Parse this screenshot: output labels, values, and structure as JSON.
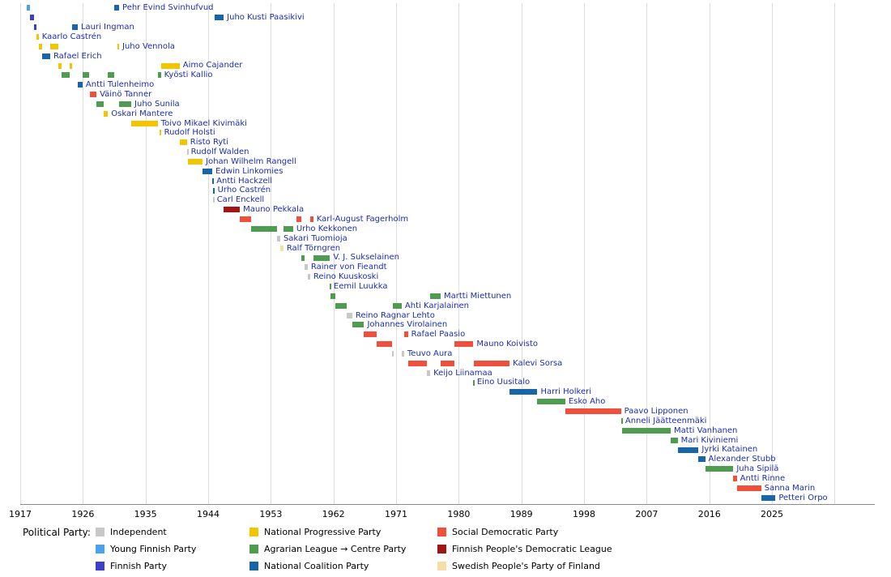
{
  "colors": {
    "label_color": "#1C2DB0",
    "gridline": "#DCDCDC",
    "axis_line": "#8A8A8A"
  },
  "party_colors": {
    "independent": "#C8C8C8",
    "young_finnish": "#49A2EE",
    "finnish_party": "#3B3FCC",
    "progressive": "#F2C500",
    "agrarian_centre": "#4F9B50",
    "national_coalition": "#1767A8",
    "sdp": "#EF4F3B",
    "fpdl": "#A31414",
    "swedish_peoples": "#F5DFA6"
  },
  "axis": {
    "tick_years": [
      1917,
      1926,
      1935,
      1944,
      1953,
      1962,
      1971,
      1980,
      1989,
      1998,
      2007,
      2016,
      2025
    ]
  },
  "legend": {
    "title": "Political Party:",
    "columns": [
      [
        {
          "label": "Independent",
          "party": "independent"
        },
        {
          "label": "Young Finnish Party",
          "party": "young_finnish"
        },
        {
          "label": "Finnish Party",
          "party": "finnish_party"
        }
      ],
      [
        {
          "label": "National Progressive Party",
          "party": "progressive"
        },
        {
          "label": "Agrarian League → Centre Party",
          "party": "agrarian_centre"
        },
        {
          "label": "National Coalition Party",
          "party": "national_coalition"
        }
      ],
      [
        {
          "label": "Social Democratic Party",
          "party": "sdp"
        },
        {
          "label": "Finnish People's Democratic League",
          "party": "fpdl"
        },
        {
          "label": "Swedish People's Party of Finland",
          "party": "swedish_peoples"
        }
      ]
    ]
  },
  "chart_data": {
    "type": "timeline",
    "x_min": 1917,
    "x_max": 2034,
    "x_ticks": [
      1917,
      1926,
      1935,
      1944,
      1953,
      1962,
      1971,
      1980,
      1989,
      1998,
      2007,
      2016,
      2025
    ],
    "grid": true,
    "legend_position": "bottom",
    "people": [
      {
        "name": "Pehr Evind Svinhufvud",
        "terms": [
          [
            1917.9,
            1918.45,
            "young_finnish"
          ],
          [
            1930.5,
            1931.2,
            "national_coalition"
          ]
        ]
      },
      {
        "name": "Juho Kusti Paasikivi",
        "terms": [
          [
            1918.45,
            1918.95,
            "finnish_party"
          ],
          [
            1944.88,
            1946.23,
            "national_coalition"
          ]
        ]
      },
      {
        "name": "Lauri Ingman",
        "terms": [
          [
            1918.95,
            1919.3,
            "finnish_party"
          ],
          [
            1924.4,
            1925.25,
            "national_coalition"
          ]
        ]
      },
      {
        "name": "Kaarlo Castrén",
        "terms": [
          [
            1919.3,
            1919.65,
            "progressive"
          ]
        ]
      },
      {
        "name": "Juho Vennola",
        "terms": [
          [
            1919.65,
            1920.2,
            "progressive"
          ],
          [
            1921.3,
            1922.45,
            "progressive"
          ],
          [
            1930.95,
            1931.2,
            "progressive"
          ]
        ]
      },
      {
        "name": "Rafael Erich",
        "terms": [
          [
            1920.2,
            1921.3,
            "national_coalition"
          ]
        ]
      },
      {
        "name": "Aimo Cajander",
        "terms": [
          [
            1922.45,
            1922.9,
            "progressive"
          ],
          [
            1924.05,
            1924.4,
            "progressive"
          ],
          [
            1937.2,
            1939.9,
            "progressive"
          ]
        ]
      },
      {
        "name": "Kyösti Kallio",
        "terms": [
          [
            1922.9,
            1924.05,
            "agrarian_centre"
          ],
          [
            1925.95,
            1926.95,
            "agrarian_centre"
          ],
          [
            1929.6,
            1930.5,
            "agrarian_centre"
          ],
          [
            1936.75,
            1937.2,
            "agrarian_centre"
          ]
        ]
      },
      {
        "name": "Antti Tulenheimo",
        "terms": [
          [
            1925.25,
            1925.95,
            "national_coalition"
          ]
        ]
      },
      {
        "name": "Väinö Tanner",
        "terms": [
          [
            1926.95,
            1927.95,
            "sdp"
          ]
        ]
      },
      {
        "name": "Juho Sunila",
        "terms": [
          [
            1927.95,
            1928.95,
            "agrarian_centre"
          ],
          [
            1931.2,
            1932.95,
            "agrarian_centre"
          ]
        ]
      },
      {
        "name": "Oskari Mantere",
        "terms": [
          [
            1928.95,
            1929.6,
            "progressive"
          ]
        ]
      },
      {
        "name": "Toivo Mikael Kivimäki",
        "terms": [
          [
            1932.95,
            1936.75,
            "progressive"
          ]
        ]
      },
      {
        "name": "Rudolf Holsti",
        "terms": [
          [
            1937.0,
            1937.2,
            "progressive"
          ]
        ]
      },
      {
        "name": "Risto Ryti",
        "terms": [
          [
            1939.9,
            1940.95,
            "progressive"
          ]
        ]
      },
      {
        "name": "Rudolf Walden",
        "terms": [
          [
            1940.95,
            1941.05,
            "independent"
          ]
        ]
      },
      {
        "name": "Johan Wilhelm Rangell",
        "terms": [
          [
            1941.05,
            1943.2,
            "progressive"
          ]
        ]
      },
      {
        "name": "Edwin Linkomies",
        "terms": [
          [
            1943.2,
            1944.6,
            "national_coalition"
          ]
        ]
      },
      {
        "name": "Antti Hackzell",
        "terms": [
          [
            1944.6,
            1944.72,
            "national_coalition"
          ]
        ]
      },
      {
        "name": "Urho Castrén",
        "terms": [
          [
            1944.72,
            1944.88,
            "national_coalition"
          ]
        ]
      },
      {
        "name": "Carl Enckell",
        "terms": [
          [
            1944.7,
            1944.78,
            "independent"
          ]
        ]
      },
      {
        "name": "Mauno Pekkala",
        "terms": [
          [
            1946.23,
            1948.55,
            "fpdl"
          ]
        ]
      },
      {
        "name": "Karl-August Fagerholm",
        "terms": [
          [
            1948.55,
            1950.2,
            "sdp"
          ],
          [
            1956.7,
            1957.4,
            "sdp"
          ],
          [
            1958.65,
            1959.1,
            "sdp"
          ]
        ]
      },
      {
        "name": "Urho Kekkonen",
        "terms": [
          [
            1950.2,
            1953.9,
            "agrarian_centre"
          ],
          [
            1954.8,
            1956.2,
            "agrarian_centre"
          ]
        ]
      },
      {
        "name": "Sakari Tuomioja",
        "terms": [
          [
            1953.9,
            1954.35,
            "independent"
          ]
        ]
      },
      {
        "name": "Ralf Törngren",
        "terms": [
          [
            1954.35,
            1954.8,
            "swedish_peoples"
          ]
        ]
      },
      {
        "name": "V. J. Sukselainen",
        "terms": [
          [
            1957.4,
            1957.9,
            "agrarian_centre"
          ],
          [
            1959.1,
            1961.5,
            "agrarian_centre"
          ]
        ]
      },
      {
        "name": "Rainer von Fieandt",
        "terms": [
          [
            1957.9,
            1958.3,
            "independent"
          ]
        ]
      },
      {
        "name": "Reino Kuuskoski",
        "terms": [
          [
            1958.3,
            1958.65,
            "independent"
          ]
        ]
      },
      {
        "name": "Eemil Luukka",
        "terms": [
          [
            1961.5,
            1961.56,
            "agrarian_centre"
          ]
        ]
      },
      {
        "name": "Martti Miettunen",
        "terms": [
          [
            1961.56,
            1962.3,
            "agrarian_centre"
          ],
          [
            1975.9,
            1977.4,
            "agrarian_centre"
          ]
        ]
      },
      {
        "name": "Ahti Karjalainen",
        "terms": [
          [
            1962.3,
            1963.95,
            "agrarian_centre"
          ],
          [
            1970.55,
            1971.8,
            "agrarian_centre"
          ]
        ]
      },
      {
        "name": "Reino Ragnar Lehto",
        "terms": [
          [
            1963.95,
            1964.7,
            "independent"
          ]
        ]
      },
      {
        "name": "Johannes Virolainen",
        "terms": [
          [
            1964.7,
            1966.4,
            "agrarian_centre"
          ]
        ]
      },
      {
        "name": "Rafael Paasio",
        "terms": [
          [
            1966.4,
            1968.2,
            "sdp"
          ],
          [
            1972.15,
            1972.7,
            "sdp"
          ]
        ]
      },
      {
        "name": "Mauno Koivisto",
        "terms": [
          [
            1968.2,
            1970.4,
            "sdp"
          ],
          [
            1979.4,
            1982.1,
            "sdp"
          ]
        ]
      },
      {
        "name": "Teuvo Aura",
        "terms": [
          [
            1970.4,
            1970.55,
            "independent"
          ],
          [
            1971.8,
            1972.15,
            "independent"
          ]
        ]
      },
      {
        "name": "Kalevi Sorsa",
        "terms": [
          [
            1972.7,
            1975.45,
            "sdp"
          ],
          [
            1977.4,
            1979.4,
            "sdp"
          ],
          [
            1982.15,
            1987.3,
            "sdp"
          ]
        ]
      },
      {
        "name": "Keijo Liinamaa",
        "terms": [
          [
            1975.45,
            1975.9,
            "independent"
          ]
        ]
      },
      {
        "name": "Eino Uusitalo",
        "terms": [
          [
            1982.05,
            1982.15,
            "agrarian_centre"
          ]
        ]
      },
      {
        "name": "Harri Holkeri",
        "terms": [
          [
            1987.3,
            1991.3,
            "national_coalition"
          ]
        ]
      },
      {
        "name": "Esko Aho",
        "terms": [
          [
            1991.3,
            1995.3,
            "agrarian_centre"
          ]
        ]
      },
      {
        "name": "Paavo Lipponen",
        "terms": [
          [
            1995.3,
            2003.3,
            "sdp"
          ]
        ]
      },
      {
        "name": "Anneli Jäätteenmäki",
        "terms": [
          [
            2003.3,
            2003.45,
            "agrarian_centre"
          ]
        ]
      },
      {
        "name": "Matti Vanhanen",
        "terms": [
          [
            2003.45,
            2010.45,
            "agrarian_centre"
          ]
        ]
      },
      {
        "name": "Mari Kiviniemi",
        "terms": [
          [
            2010.45,
            2011.45,
            "agrarian_centre"
          ]
        ]
      },
      {
        "name": "Jyrki Katainen",
        "terms": [
          [
            2011.45,
            2014.45,
            "national_coalition"
          ]
        ]
      },
      {
        "name": "Alexander Stubb",
        "terms": [
          [
            2014.45,
            2015.4,
            "national_coalition"
          ]
        ]
      },
      {
        "name": "Juha Sipilä",
        "terms": [
          [
            2015.4,
            2019.45,
            "agrarian_centre"
          ]
        ]
      },
      {
        "name": "Antti Rinne",
        "terms": [
          [
            2019.45,
            2019.95,
            "sdp"
          ]
        ]
      },
      {
        "name": "Sanna Marin",
        "terms": [
          [
            2019.95,
            2023.45,
            "sdp"
          ]
        ]
      },
      {
        "name": "Petteri Orpo",
        "terms": [
          [
            2023.45,
            2025.5,
            "national_coalition"
          ]
        ]
      }
    ]
  }
}
